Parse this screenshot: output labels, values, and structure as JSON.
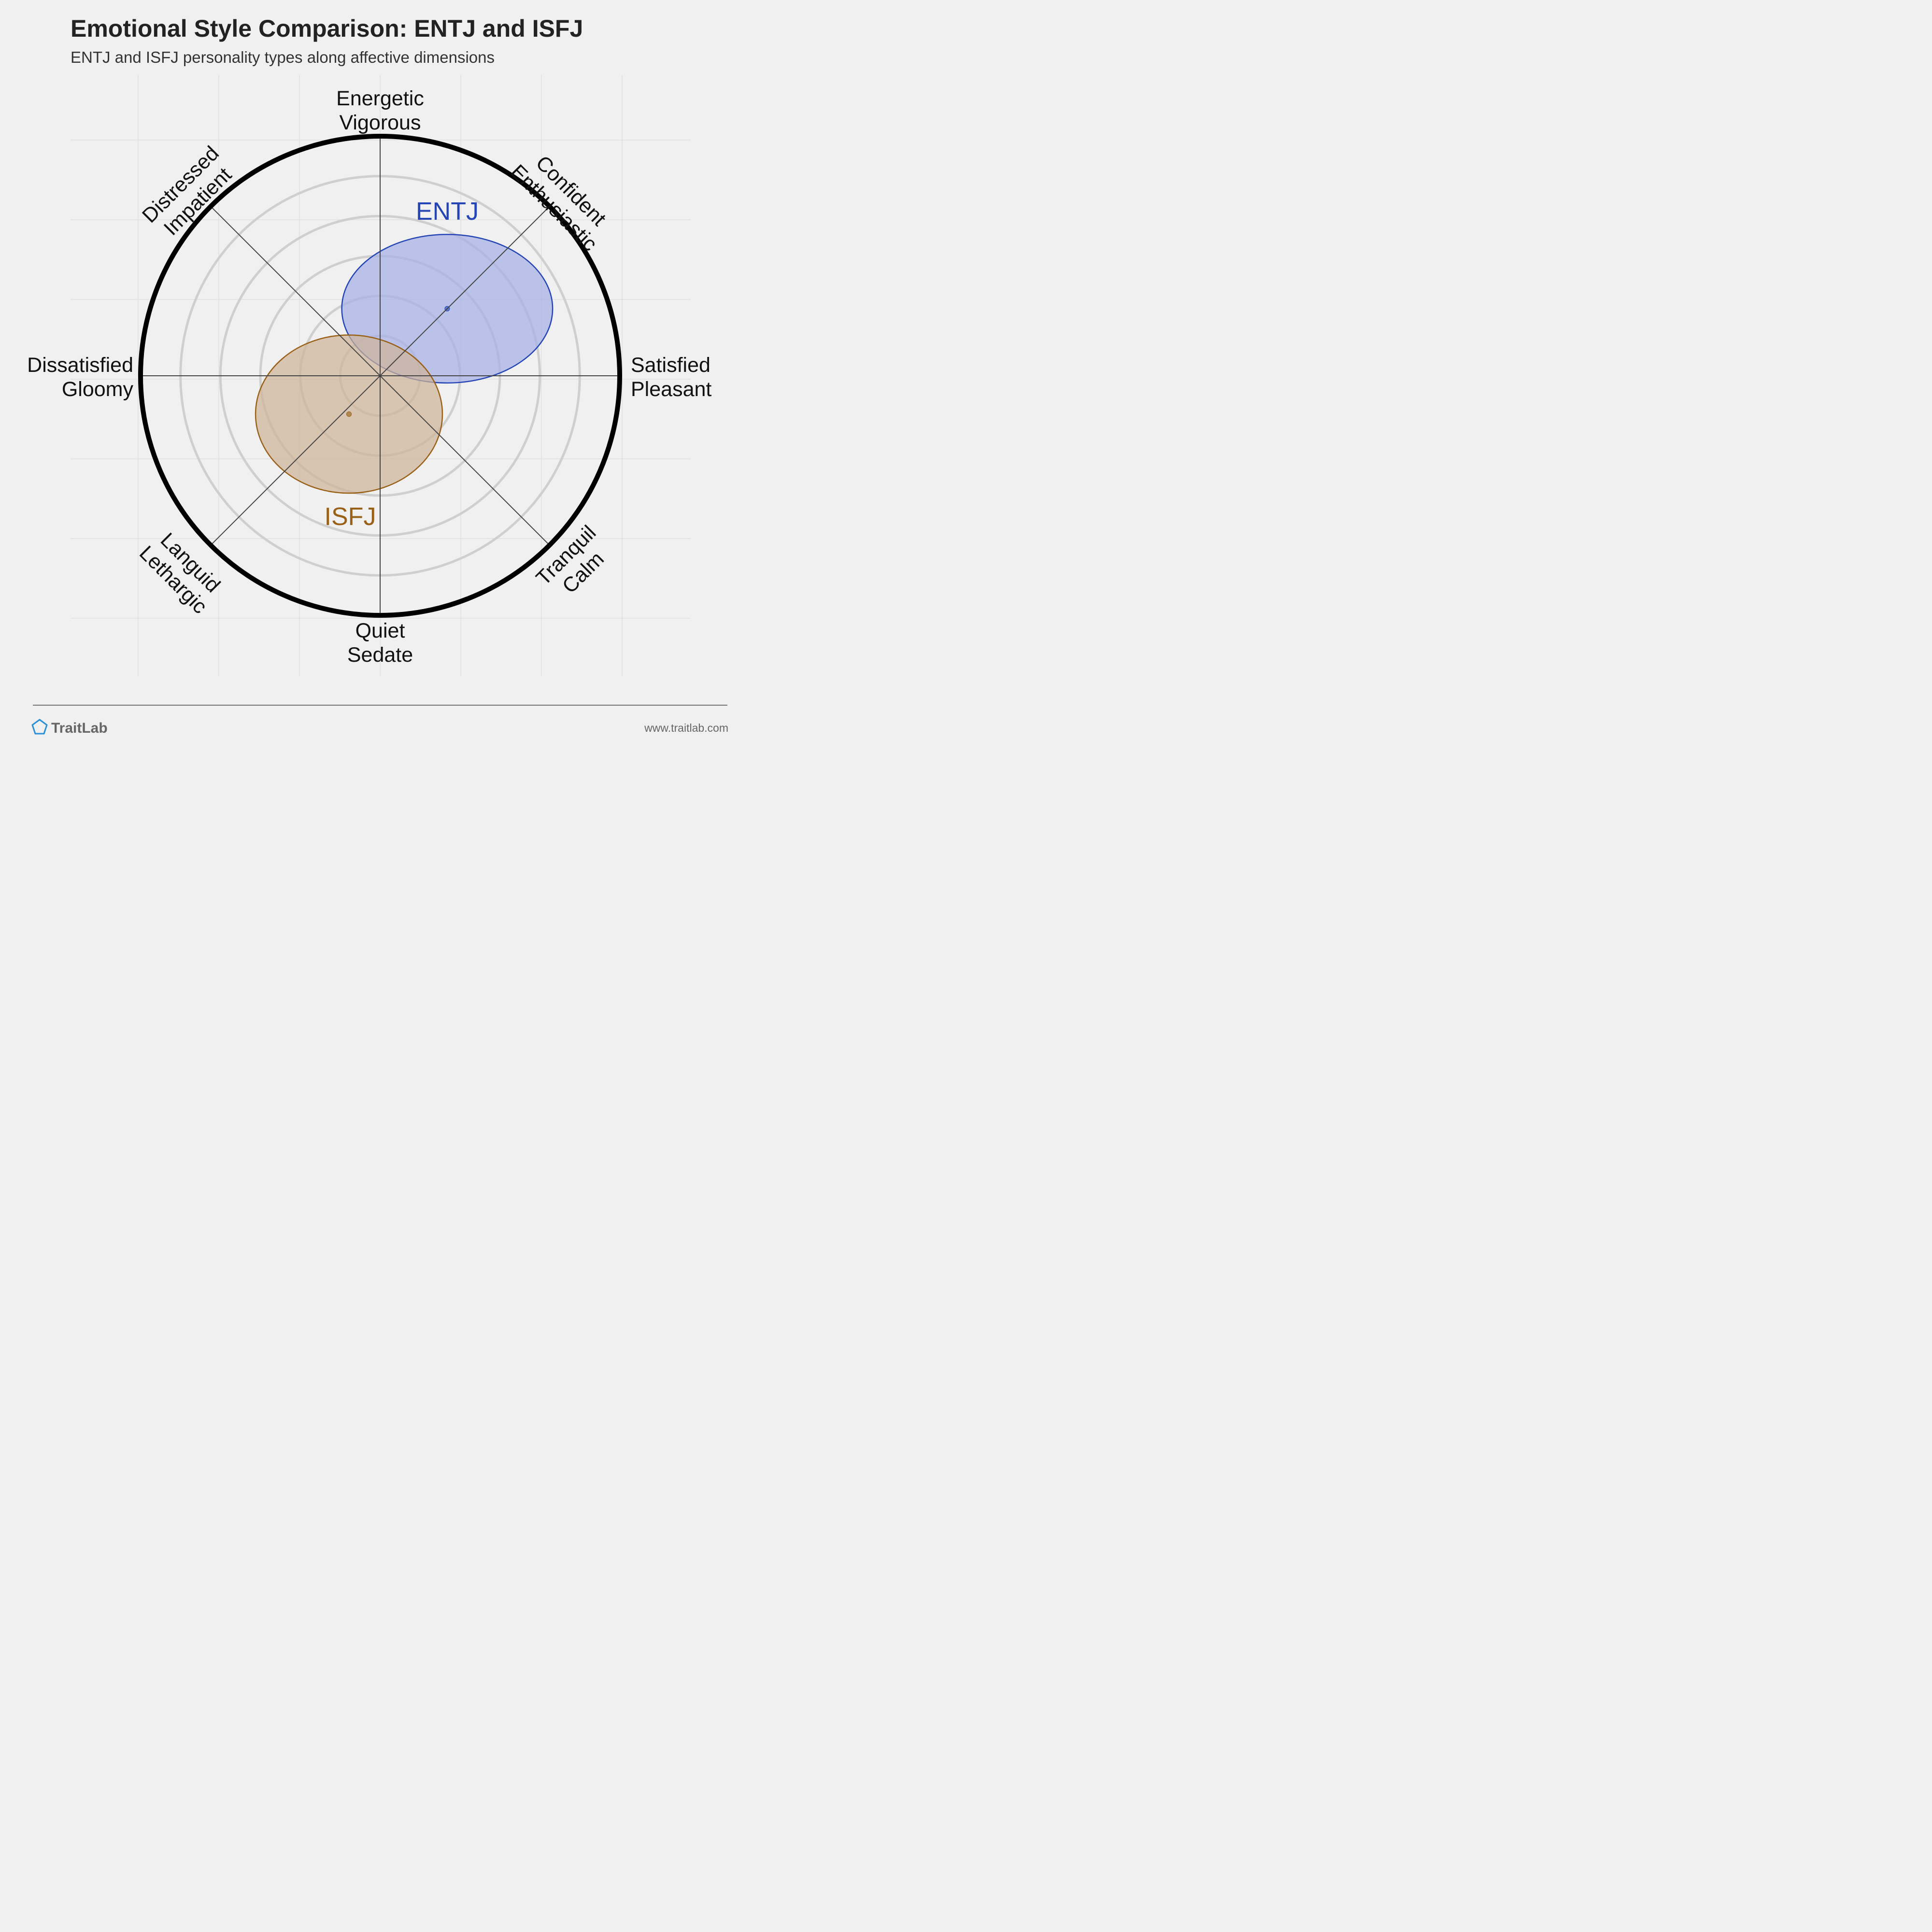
{
  "header": {
    "title": "Emotional Style Comparison: ENTJ and ISFJ",
    "subtitle": "ENTJ and ISFJ personality types along affective dimensions"
  },
  "chart_data": {
    "type": "scatter",
    "variant": "circumplex",
    "axes": [
      {
        "direction": "N",
        "lines": [
          "Energetic",
          "Vigorous"
        ]
      },
      {
        "direction": "NE",
        "lines": [
          "Confident",
          "Enthusiastic"
        ]
      },
      {
        "direction": "E",
        "lines": [
          "Satisfied",
          "Pleasant"
        ]
      },
      {
        "direction": "SE",
        "lines": [
          "Tranquil",
          "Calm"
        ]
      },
      {
        "direction": "S",
        "lines": [
          "Quiet",
          "Sedate"
        ]
      },
      {
        "direction": "SW",
        "lines": [
          "Languid",
          "Lethargic"
        ]
      },
      {
        "direction": "W",
        "lines": [
          "Dissatisfied",
          "Gloomy"
        ]
      },
      {
        "direction": "NW",
        "lines": [
          "Distressed",
          "Impatient"
        ]
      }
    ],
    "range": [
      -1,
      1
    ],
    "rings": 6,
    "grid": true,
    "series": [
      {
        "name": "ENTJ",
        "x": 0.28,
        "y": 0.28,
        "spread_x": 0.44,
        "spread_y": 0.31,
        "color": "#2545b5",
        "fill": "#a6b0e6"
      },
      {
        "name": "ISFJ",
        "x": -0.13,
        "y": -0.16,
        "spread_x": 0.39,
        "spread_y": 0.33,
        "color": "#996017",
        "fill": "#cfb499"
      }
    ]
  },
  "footer": {
    "brand": "TraitLab",
    "site": "www.traitlab.com",
    "logo_icon": "pentagon-icon"
  }
}
